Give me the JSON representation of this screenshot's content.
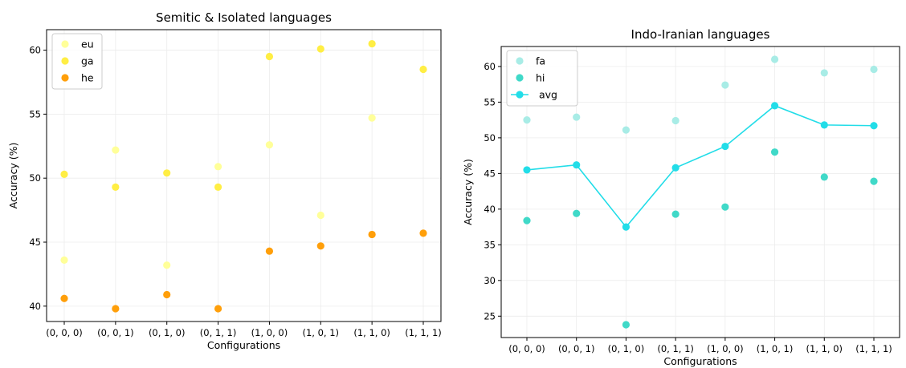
{
  "chart_data": [
    {
      "type": "scatter",
      "title": "Semitic & Isolated languages",
      "xlabel": "Configurations",
      "ylabel": "Accuracy (%)",
      "categories": [
        "(0, 0, 0)",
        "(0, 0, 1)",
        "(0, 1, 0)",
        "(0, 1, 1)",
        "(1, 0, 0)",
        "(1, 0, 1)",
        "(1, 1, 0)",
        "(1, 1, 1)"
      ],
      "ylim": [
        38.8,
        61.6
      ],
      "yticks": [
        40,
        45,
        50,
        55,
        60
      ],
      "grid": true,
      "legend_position": "top-left",
      "series": [
        {
          "name": "eu",
          "color": "#ffff99",
          "style": "scatter",
          "values": [
            43.6,
            52.2,
            43.2,
            50.9,
            52.6,
            47.1,
            54.7,
            null
          ]
        },
        {
          "name": "ga",
          "color": "#ffee44",
          "style": "scatter",
          "values": [
            50.3,
            49.3,
            50.4,
            49.3,
            59.5,
            60.1,
            60.5,
            58.5
          ]
        },
        {
          "name": "he",
          "color": "#ff9f0a",
          "style": "scatter",
          "values": [
            40.6,
            39.8,
            40.9,
            39.8,
            44.3,
            44.7,
            45.6,
            45.7
          ]
        }
      ]
    },
    {
      "type": "scatter",
      "title": "Indo-Iranian languages",
      "xlabel": "Configurations",
      "ylabel": "Accuracy (%)",
      "categories": [
        "(0, 0, 0)",
        "(0, 0, 1)",
        "(0, 1, 0)",
        "(0, 1, 1)",
        "(1, 0, 0)",
        "(1, 0, 1)",
        "(1, 1, 0)",
        "(1, 1, 1)"
      ],
      "ylim": [
        22.0,
        62.8
      ],
      "yticks": [
        25,
        30,
        35,
        40,
        45,
        50,
        55,
        60
      ],
      "grid": true,
      "legend_position": "top-left",
      "series": [
        {
          "name": "fa",
          "color": "#a8ece6",
          "style": "scatter",
          "values": [
            52.5,
            52.9,
            51.1,
            52.4,
            57.4,
            61.0,
            59.1,
            59.6
          ]
        },
        {
          "name": "hi",
          "color": "#40d9c8",
          "style": "scatter",
          "values": [
            38.4,
            39.4,
            23.8,
            39.3,
            40.3,
            48.0,
            44.5,
            43.9
          ]
        },
        {
          "name": "avg",
          "color": "#22dde8",
          "style": "line",
          "values": [
            45.5,
            46.2,
            37.5,
            45.8,
            48.8,
            54.5,
            51.8,
            51.7
          ]
        }
      ]
    }
  ]
}
